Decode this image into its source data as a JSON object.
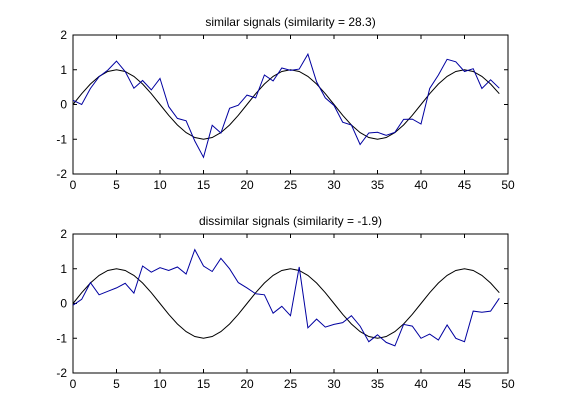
{
  "chart_data": [
    {
      "type": "line",
      "title": "similar signals (similarity = 28.3)",
      "xlabel": "",
      "ylabel": "",
      "xlim": [
        0,
        50
      ],
      "ylim": [
        -2,
        2
      ],
      "xticks": [
        "0",
        "5",
        "10",
        "15",
        "20",
        "25",
        "30",
        "35",
        "40",
        "45",
        "50"
      ],
      "yticks": [
        "2",
        "1",
        "0",
        "-1",
        "-2"
      ],
      "grid": false,
      "x": [
        0,
        1,
        2,
        3,
        4,
        5,
        6,
        7,
        8,
        9,
        10,
        11,
        12,
        13,
        14,
        15,
        16,
        17,
        18,
        19,
        20,
        21,
        22,
        23,
        24,
        25,
        26,
        27,
        28,
        29,
        30,
        31,
        32,
        33,
        34,
        35,
        36,
        37,
        38,
        39,
        40,
        41,
        42,
        43,
        44,
        45,
        46,
        47,
        48,
        49
      ],
      "series": [
        {
          "color": "#000000",
          "values": [
            0.0,
            0.31,
            0.59,
            0.81,
            0.95,
            1.0,
            0.95,
            0.81,
            0.59,
            0.31,
            0.0,
            -0.31,
            -0.59,
            -0.81,
            -0.95,
            -1.0,
            -0.95,
            -0.81,
            -0.59,
            -0.31,
            0.0,
            0.31,
            0.59,
            0.81,
            0.95,
            1.0,
            0.95,
            0.81,
            0.59,
            0.31,
            0.0,
            -0.31,
            -0.59,
            -0.81,
            -0.95,
            -1.0,
            -0.95,
            -0.81,
            -0.59,
            -0.31,
            0.0,
            0.31,
            0.59,
            0.81,
            0.95,
            1.0,
            0.95,
            0.81,
            0.59,
            0.31
          ]
        },
        {
          "color": "#0000a0",
          "values": [
            0.12,
            0.0,
            0.46,
            0.8,
            0.99,
            1.25,
            0.95,
            0.47,
            0.69,
            0.42,
            0.75,
            -0.06,
            -0.4,
            -0.47,
            -1.05,
            -1.52,
            -0.6,
            -0.82,
            -0.11,
            -0.02,
            0.27,
            0.19,
            0.85,
            0.68,
            1.05,
            0.98,
            1.02,
            1.45,
            0.65,
            0.19,
            -0.03,
            -0.51,
            -0.59,
            -1.15,
            -0.82,
            -0.8,
            -0.89,
            -0.8,
            -0.43,
            -0.42,
            -0.56,
            0.46,
            0.85,
            1.3,
            1.23,
            0.95,
            1.03,
            0.46,
            0.71,
            0.47
          ]
        }
      ]
    },
    {
      "type": "line",
      "title": "dissimilar signals  (similarity = -1.9)",
      "xlabel": "",
      "ylabel": "",
      "xlim": [
        0,
        50
      ],
      "ylim": [
        -2,
        2
      ],
      "xticks": [
        "0",
        "5",
        "10",
        "15",
        "20",
        "25",
        "30",
        "35",
        "40",
        "45",
        "50"
      ],
      "yticks": [
        "2",
        "1",
        "0",
        "-1",
        "-2"
      ],
      "grid": false,
      "x": [
        0,
        1,
        2,
        3,
        4,
        5,
        6,
        7,
        8,
        9,
        10,
        11,
        12,
        13,
        14,
        15,
        16,
        17,
        18,
        19,
        20,
        21,
        22,
        23,
        24,
        25,
        26,
        27,
        28,
        29,
        30,
        31,
        32,
        33,
        34,
        35,
        36,
        37,
        38,
        39,
        40,
        41,
        42,
        43,
        44,
        45,
        46,
        47,
        48,
        49
      ],
      "series": [
        {
          "color": "#000000",
          "values": [
            0.0,
            0.31,
            0.59,
            0.81,
            0.95,
            1.0,
            0.95,
            0.81,
            0.59,
            0.31,
            0.0,
            -0.31,
            -0.59,
            -0.81,
            -0.95,
            -1.0,
            -0.95,
            -0.81,
            -0.59,
            -0.31,
            0.0,
            0.31,
            0.59,
            0.81,
            0.95,
            1.0,
            0.95,
            0.81,
            0.59,
            0.31,
            0.0,
            -0.31,
            -0.59,
            -0.81,
            -0.95,
            -1.0,
            -0.95,
            -0.81,
            -0.59,
            -0.31,
            0.0,
            0.31,
            0.59,
            0.81,
            0.95,
            1.0,
            0.95,
            0.81,
            0.59,
            0.31
          ]
        },
        {
          "color": "#0000a0",
          "values": [
            -0.05,
            0.12,
            0.6,
            0.25,
            0.35,
            0.45,
            0.58,
            0.3,
            1.08,
            0.9,
            1.03,
            0.95,
            1.05,
            0.85,
            1.55,
            1.08,
            0.92,
            1.3,
            1.0,
            0.6,
            0.45,
            0.28,
            0.25,
            -0.28,
            -0.08,
            -0.35,
            1.05,
            -0.7,
            -0.45,
            -0.68,
            -0.6,
            -0.55,
            -0.35,
            -0.65,
            -1.1,
            -0.9,
            -1.12,
            -1.22,
            -0.6,
            -0.65,
            -1.0,
            -0.88,
            -1.05,
            -0.62,
            -1.0,
            -1.1,
            -0.22,
            -0.25,
            -0.22,
            0.15
          ]
        }
      ]
    }
  ]
}
